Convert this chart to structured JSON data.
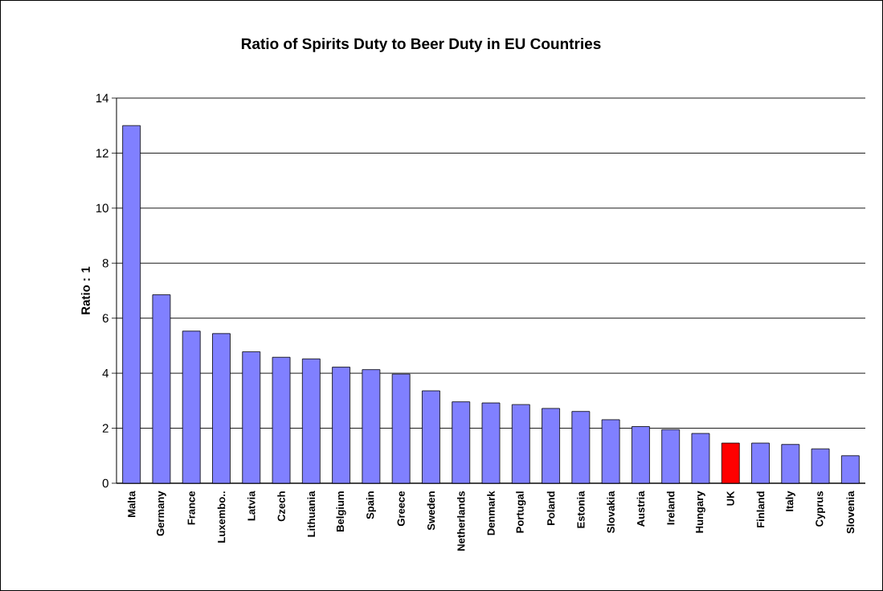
{
  "chart_data": {
    "type": "bar",
    "title": "Ratio of Spirits Duty to Beer Duty in EU Countries",
    "ylabel": "Ratio : 1",
    "categories": [
      "Malta",
      "Germany",
      "France",
      "Luxembo..",
      "Latvia",
      "Czech",
      "Lithuania",
      "Belgium",
      "Spain",
      "Greece",
      "Sweden",
      "Netherlands",
      "Denmark",
      "Portugal",
      "Poland",
      "Estonia",
      "Slovakia",
      "Austria",
      "Ireland",
      "Hungary",
      "UK",
      "Finland",
      "Italy",
      "Cyprus",
      "Slovenia"
    ],
    "values": [
      13.0,
      6.85,
      5.53,
      5.44,
      4.78,
      4.58,
      4.52,
      4.22,
      4.13,
      3.97,
      3.36,
      2.96,
      2.92,
      2.86,
      2.72,
      2.61,
      2.31,
      2.06,
      1.95,
      1.81,
      1.46,
      1.46,
      1.41,
      1.25,
      1.0
    ],
    "colors": [
      "#8080ff",
      "#8080ff",
      "#8080ff",
      "#8080ff",
      "#8080ff",
      "#8080ff",
      "#8080ff",
      "#8080ff",
      "#8080ff",
      "#8080ff",
      "#8080ff",
      "#8080ff",
      "#8080ff",
      "#8080ff",
      "#8080ff",
      "#8080ff",
      "#8080ff",
      "#8080ff",
      "#8080ff",
      "#8080ff",
      "#ff0000",
      "#8080ff",
      "#8080ff",
      "#8080ff",
      "#8080ff"
    ],
    "ylim": [
      0,
      14
    ],
    "yticks": [
      0,
      2,
      4,
      6,
      8,
      10,
      12,
      14
    ],
    "grid": "y"
  }
}
